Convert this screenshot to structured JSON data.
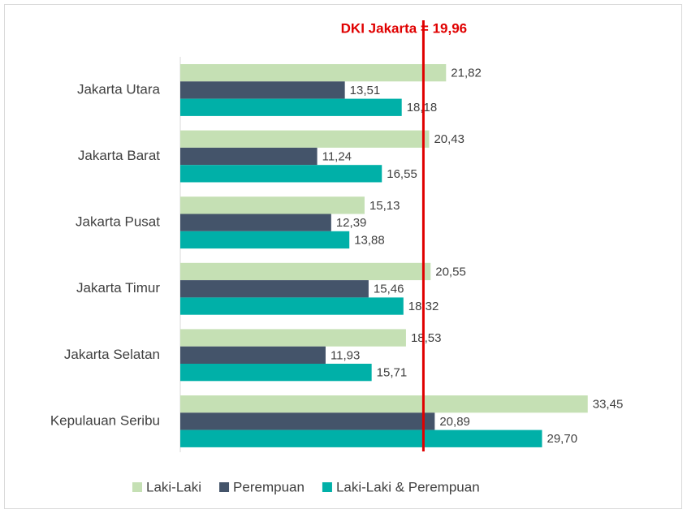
{
  "chart_data": {
    "type": "bar",
    "orientation": "horizontal",
    "categories": [
      "Jakarta Utara",
      "Jakarta Barat",
      "Jakarta Pusat",
      "Jakarta Timur",
      "Jakarta Selatan",
      "Kepulauan Seribu"
    ],
    "series": [
      {
        "name": "Laki-Laki",
        "color": "#c5e0b4",
        "values": [
          21.82,
          20.43,
          15.13,
          20.55,
          18.53,
          33.45
        ],
        "value_labels": [
          "21,82",
          "20,43",
          "15,13",
          "20,55",
          "18,53",
          "33,45"
        ]
      },
      {
        "name": "Perempuan",
        "color": "#44546a",
        "values": [
          13.51,
          11.24,
          12.39,
          15.46,
          11.93,
          20.89
        ],
        "value_labels": [
          "13,51",
          "11,24",
          "12,39",
          "15,46",
          "11,93",
          "20,89"
        ]
      },
      {
        "name": "Laki-Laki & Perempuan",
        "color": "#00b0a8",
        "values": [
          18.18,
          16.55,
          13.88,
          18.32,
          15.71,
          29.7
        ],
        "value_labels": [
          "18,18",
          "16,55",
          "13,88",
          "18,32",
          "15,71",
          "29,70"
        ]
      }
    ],
    "xlim": [
      0,
      35
    ],
    "reference_line": {
      "value": 19.96,
      "label": "DKI Jakarta = 19,96",
      "color": "#e00000"
    },
    "legend": "bottom"
  }
}
